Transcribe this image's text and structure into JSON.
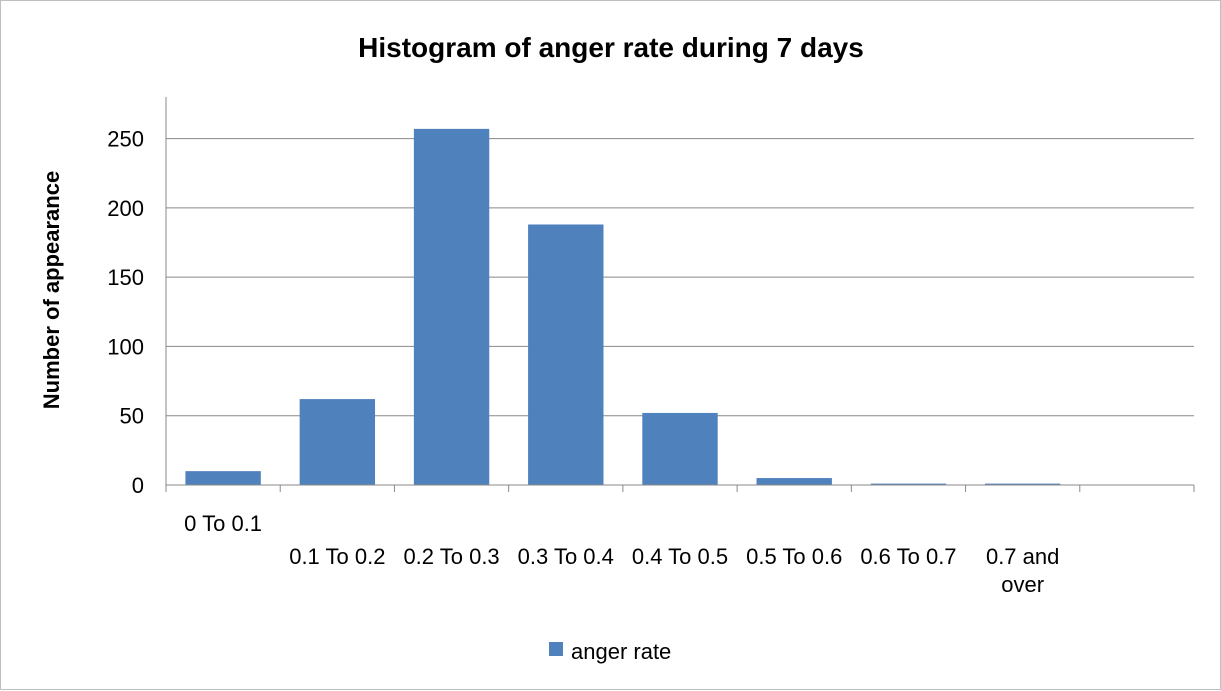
{
  "chart_data": {
    "type": "bar",
    "title": "Histogram of anger rate during 7 days",
    "xlabel": "",
    "ylabel": "Number of appearance",
    "categories": [
      "0 To 0.1",
      "0.1 To 0.2",
      "0.2 To 0.3",
      "0.3 To 0.4",
      "0.4 To 0.5",
      "0.5 To 0.6",
      "0.6 To 0.7",
      "0.7 and over",
      ""
    ],
    "series": [
      {
        "name": "anger rate",
        "values": [
          10,
          62,
          257,
          188,
          52,
          5,
          1,
          1,
          0
        ]
      }
    ],
    "ylim": [
      0,
      280
    ],
    "yticks": [
      0,
      50,
      100,
      150,
      200,
      250
    ],
    "grid": true,
    "legend": "bottom",
    "bar_color": "#4f81bd"
  }
}
